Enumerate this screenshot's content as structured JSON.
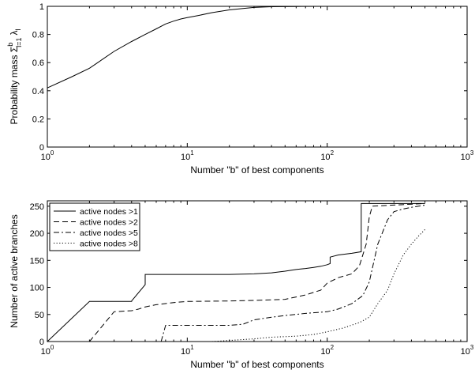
{
  "chart_data": [
    {
      "type": "line",
      "xscale": "log",
      "xlim": [
        1,
        1000
      ],
      "ylim": [
        0,
        1
      ],
      "xlabel": "Number \"b\" of best components",
      "ylabel_parts": {
        "base": "Probability mass Σ",
        "sup": "b",
        "sub": "l=1",
        "symbol": "λ",
        "symbol_sub": "l"
      },
      "xticks": [
        {
          "v": 1,
          "base": "10",
          "exp": "0"
        },
        {
          "v": 10,
          "base": "10",
          "exp": "1"
        },
        {
          "v": 100,
          "base": "10",
          "exp": "2"
        },
        {
          "v": 1000,
          "base": "10",
          "exp": "3"
        }
      ],
      "yticks": [
        {
          "v": 0,
          "label": "0"
        },
        {
          "v": 0.2,
          "label": "0.2"
        },
        {
          "v": 0.4,
          "label": "0.4"
        },
        {
          "v": 0.6,
          "label": "0.6"
        },
        {
          "v": 0.8,
          "label": "0.8"
        },
        {
          "v": 1,
          "label": "1"
        }
      ],
      "grid": false,
      "series": [
        {
          "style": "solid",
          "x": [
            1,
            1.5,
            2,
            3,
            4,
            5,
            6,
            7,
            8,
            9,
            10,
            12,
            15,
            20,
            25,
            30,
            40,
            60,
            100,
            200,
            500
          ],
          "y": [
            0.42,
            0.5,
            0.56,
            0.68,
            0.75,
            0.8,
            0.84,
            0.875,
            0.895,
            0.91,
            0.92,
            0.935,
            0.955,
            0.975,
            0.985,
            0.992,
            0.997,
            0.999,
            1.0,
            1.0,
            1.0
          ]
        }
      ]
    },
    {
      "type": "line",
      "xscale": "log",
      "xlim": [
        1,
        1000
      ],
      "ylim": [
        0,
        260
      ],
      "xlabel": "Number \"b\" of best components",
      "ylabel": "Number of active branches",
      "xticks": [
        {
          "v": 1,
          "base": "10",
          "exp": "0"
        },
        {
          "v": 10,
          "base": "10",
          "exp": "1"
        },
        {
          "v": 100,
          "base": "10",
          "exp": "2"
        },
        {
          "v": 1000,
          "base": "10",
          "exp": "3"
        }
      ],
      "yticks": [
        {
          "v": 0,
          "label": "0"
        },
        {
          "v": 50,
          "label": "50"
        },
        {
          "v": 100,
          "label": "100"
        },
        {
          "v": 150,
          "label": "150"
        },
        {
          "v": 200,
          "label": "200"
        },
        {
          "v": 250,
          "label": "250"
        }
      ],
      "grid": false,
      "legend": {
        "position": "top-left"
      },
      "series": [
        {
          "name": "active nodes >1",
          "style": "solid",
          "x": [
            1,
            2,
            4,
            4,
            5,
            5,
            10,
            20,
            30,
            40,
            50,
            60,
            70,
            80,
            90,
            100,
            105,
            105,
            120,
            150,
            175,
            175,
            180,
            500
          ],
          "y": [
            0,
            74,
            74,
            75,
            105,
            124,
            124,
            124,
            125,
            127,
            130,
            133,
            135,
            137,
            139,
            142,
            144,
            156,
            160,
            163,
            166,
            255,
            255,
            255
          ]
        },
        {
          "name": "active nodes >2",
          "style": "dashed",
          "x": [
            2,
            3,
            4,
            4.5,
            5,
            6,
            8,
            10,
            20,
            30,
            50,
            70,
            90,
            100,
            120,
            150,
            170,
            190,
            200,
            210,
            500
          ],
          "y": [
            0,
            55,
            57,
            60,
            64,
            68,
            72,
            74,
            75,
            76,
            78,
            86,
            95,
            108,
            118,
            125,
            140,
            180,
            230,
            250,
            255
          ]
        },
        {
          "name": "active nodes >5",
          "style": "dashdot",
          "x": [
            6.5,
            7,
            10,
            20,
            25,
            30,
            40,
            50,
            70,
            100,
            120,
            150,
            180,
            200,
            230,
            270,
            300,
            350,
            400,
            500
          ],
          "y": [
            0,
            30,
            30,
            30,
            32,
            40,
            45,
            48,
            52,
            55,
            60,
            70,
            85,
            110,
            180,
            225,
            240,
            245,
            248,
            252
          ]
        },
        {
          "name": "active nodes >8",
          "style": "dotted",
          "x": [
            15,
            20,
            30,
            40,
            60,
            80,
            100,
            130,
            170,
            200,
            230,
            270,
            300,
            350,
            400,
            450,
            500
          ],
          "y": [
            0,
            2,
            5,
            8,
            10,
            13,
            18,
            25,
            35,
            45,
            70,
            95,
            125,
            160,
            180,
            195,
            207
          ]
        }
      ]
    }
  ]
}
